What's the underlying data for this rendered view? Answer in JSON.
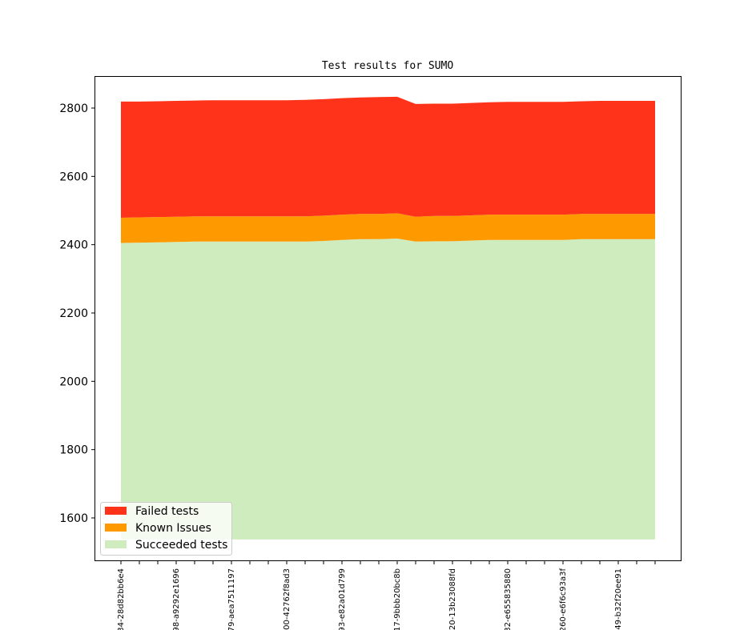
{
  "chart_data": {
    "type": "area",
    "stacked": true,
    "title": "Test results for SUMO",
    "xlabel": "",
    "ylabel": "",
    "ylim": [
      1487,
      2894
    ],
    "yticks": [
      1600,
      1800,
      2000,
      2200,
      2400,
      2600,
      2800
    ],
    "baseline": 1537,
    "n_points": 30,
    "x_tick_labels": [
      {
        "index": 0,
        "label": "34-28d82bb6e4"
      },
      {
        "index": 3,
        "label": "98-a9292e1696"
      },
      {
        "index": 6,
        "label": "79-aea7511197"
      },
      {
        "index": 9,
        "label": "00-42762f8ad3"
      },
      {
        "index": 12,
        "label": "93-e82a01d799"
      },
      {
        "index": 15,
        "label": "17-9bbb20bc8b"
      },
      {
        "index": 18,
        "label": "20-13b23088fd"
      },
      {
        "index": 21,
        "label": "32-e655835880"
      },
      {
        "index": 24,
        "label": "260-e6f6c93a3f"
      },
      {
        "index": 27,
        "label": "49-b32f20ee91"
      }
    ],
    "series": [
      {
        "name": "Succeeded tests",
        "color": "#cfecbe",
        "cumulative_top": [
          2405,
          2406,
          2407,
          2408,
          2409,
          2409,
          2409,
          2409,
          2409,
          2409,
          2409,
          2411,
          2414,
          2416,
          2416,
          2418,
          2409,
          2410,
          2410,
          2412,
          2414,
          2414,
          2414,
          2414,
          2414,
          2416,
          2416,
          2416,
          2416,
          2416
        ]
      },
      {
        "name": "Known Issues",
        "color": "#ff9900",
        "cumulative_top": [
          2479,
          2480,
          2481,
          2482,
          2483,
          2483,
          2483,
          2483,
          2483,
          2483,
          2483,
          2485,
          2488,
          2490,
          2490,
          2492,
          2482,
          2484,
          2484,
          2486,
          2488,
          2488,
          2488,
          2488,
          2488,
          2490,
          2490,
          2490,
          2490,
          2490
        ]
      },
      {
        "name": "Failed tests",
        "color": "#ff331a",
        "cumulative_top": [
          2819,
          2819,
          2820,
          2821,
          2822,
          2823,
          2823,
          2823,
          2823,
          2823,
          2824,
          2826,
          2829,
          2831,
          2832,
          2833,
          2812,
          2813,
          2813,
          2815,
          2817,
          2818,
          2818,
          2818,
          2818,
          2820,
          2821,
          2821,
          2821,
          2821
        ]
      }
    ],
    "legend": {
      "placement": "lower-left",
      "entries": [
        {
          "label": "Failed tests",
          "color": "#ff331a"
        },
        {
          "label": "Known Issues",
          "color": "#ff9900"
        },
        {
          "label": "Succeeded tests",
          "color": "#cfecbe"
        }
      ]
    }
  }
}
